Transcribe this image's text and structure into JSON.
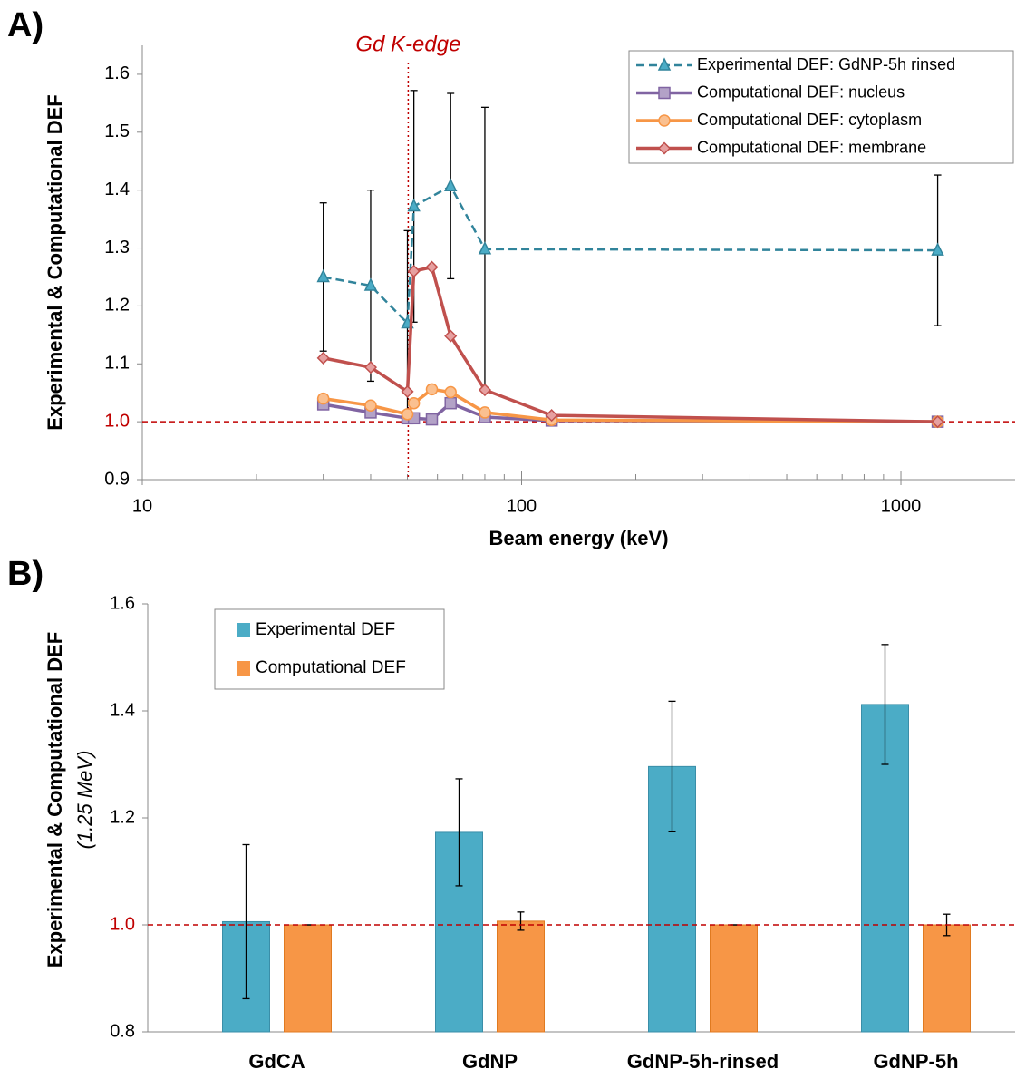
{
  "chart_data": [
    {
      "type": "line",
      "panel_label": "A)",
      "xlabel": "Beam energy (keV)",
      "ylabel": "Experimental & Computational DEF",
      "annotation": "Gd K-edge",
      "kedge_x": 50.24,
      "reference_y": 1,
      "reference_color": "#c00000",
      "xlog": true,
      "xlim": [
        10,
        2000
      ],
      "ylim": [
        0.9,
        1.65
      ],
      "xticks": [
        10,
        100,
        1000
      ],
      "xminor_ticks": [
        20,
        30,
        40,
        50,
        60,
        70,
        80,
        90,
        200,
        300,
        400,
        500,
        600,
        700,
        800,
        900
      ],
      "yticks": [
        0.9,
        {
          "value": 1,
          "label": "1.0"
        },
        1.1,
        1.2,
        1.3,
        1.4,
        1.5,
        1.6
      ],
      "legend": "upper right",
      "series": [
        {
          "name": "Experimental DEF: GdNP-5h rinsed",
          "color": "#31849b",
          "marker": "triangle",
          "marker_fill": "#4bacc6",
          "dashed": true,
          "x": [
            30,
            40,
            50,
            52,
            65,
            80,
            1250
          ],
          "values": [
            1.25,
            1.235,
            1.17,
            1.372,
            1.407,
            1.298,
            1.296
          ],
          "errors": [
            0.128,
            0.165,
            0.16,
            0.2,
            0.16,
            0.245,
            0.13
          ]
        },
        {
          "name": "Computational DEF: nucleus",
          "color": "#8064a2",
          "marker": "square",
          "marker_fill": "#b3a2c7",
          "dashed": false,
          "x": [
            30,
            40,
            50,
            52,
            58,
            65,
            80,
            120,
            1250
          ],
          "values": [
            1.03,
            1.016,
            1.006,
            1.006,
            1.004,
            1.032,
            1.008,
            1.002,
            1.0
          ]
        },
        {
          "name": "Computational DEF: cytoplasm",
          "color": "#f79646",
          "marker": "circle",
          "marker_fill": "#fac090",
          "dashed": false,
          "x": [
            30,
            40,
            50,
            52,
            58,
            65,
            80,
            120,
            1250
          ],
          "values": [
            1.04,
            1.028,
            1.013,
            1.032,
            1.056,
            1.051,
            1.016,
            1.003,
            1.0
          ]
        },
        {
          "name": "Computational DEF: membrane",
          "color": "#c0504d",
          "marker": "diamond",
          "marker_fill": "#e6a0a0",
          "dashed": false,
          "x": [
            30,
            40,
            50,
            52,
            58,
            65,
            80,
            120,
            1250
          ],
          "values": [
            1.11,
            1.094,
            1.052,
            1.26,
            1.267,
            1.148,
            1.055,
            1.011,
            1.0
          ]
        }
      ]
    },
    {
      "type": "bar",
      "panel_label": "B)",
      "ylabel": "Experimental & Computational DEF",
      "ylabel_sub": "(1.25 MeV)",
      "reference_y": 1,
      "reference_color": "#c00000",
      "ylim": [
        0.8,
        1.6
      ],
      "yticks": [
        0.8,
        {
          "value": 1,
          "label": "1.0"
        },
        1.2,
        1.4,
        1.6
      ],
      "legend": "upper left",
      "categories": [
        "GdCA",
        "GdNP",
        "GdNP-5h-rinsed",
        "GdNP-5h"
      ],
      "series": [
        {
          "name": "Experimental DEF",
          "color": "#4bacc6",
          "values": [
            1.006,
            1.173,
            1.296,
            1.412
          ],
          "errors": [
            0.144,
            0.1,
            0.122,
            0.112
          ]
        },
        {
          "name": "Computational DEF",
          "color": "#f79646",
          "values": [
            1.0,
            1.007,
            1.0,
            1.0
          ],
          "errors": [
            0,
            0.017,
            0,
            0.02
          ]
        }
      ]
    }
  ]
}
